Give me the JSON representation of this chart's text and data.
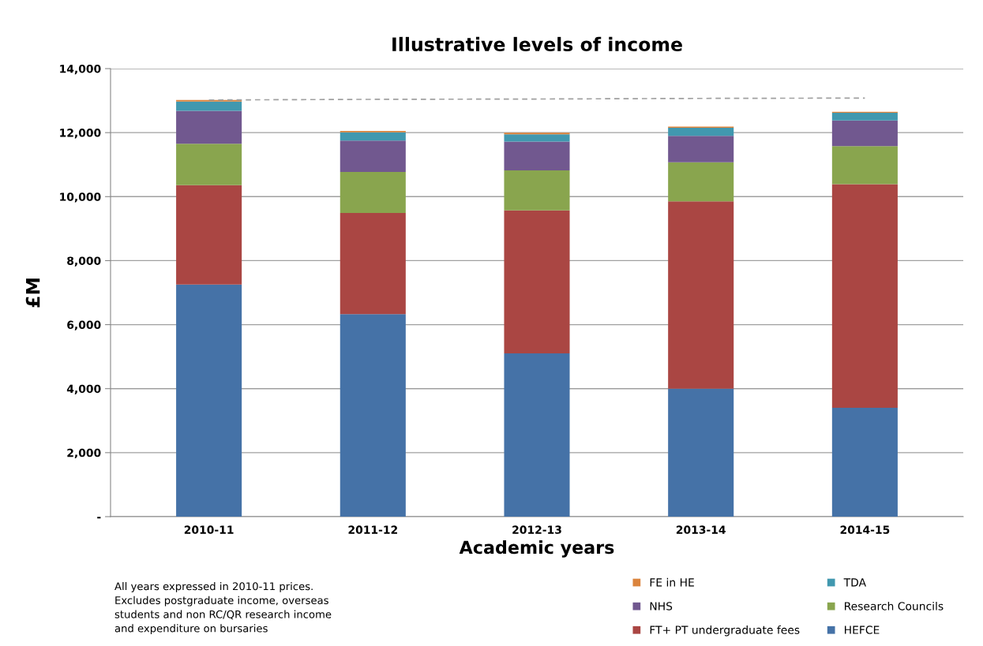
{
  "chart_data": {
    "type": "bar",
    "title": "Illustrative levels of income",
    "xlabel": "Academic years",
    "ylabel": "£M",
    "categories": [
      "2010-11",
      "2011-12",
      "2012-13",
      "2013-14",
      "2014-15"
    ],
    "stacked": true,
    "series": [
      {
        "name": "HEFCE",
        "color": "#4572a7",
        "values": [
          7250,
          6330,
          5100,
          4000,
          3400
        ]
      },
      {
        "name": "FT+ PT undergraduate fees",
        "color": "#aa4643",
        "values": [
          3110,
          3160,
          4470,
          5850,
          6990
        ]
      },
      {
        "name": "Research Councils",
        "color": "#89a54e",
        "values": [
          1290,
          1280,
          1250,
          1220,
          1190
        ]
      },
      {
        "name": "NHS",
        "color": "#71588f",
        "values": [
          1030,
          980,
          900,
          830,
          800
        ]
      },
      {
        "name": "TDA",
        "color": "#4198af",
        "values": [
          290,
          260,
          230,
          250,
          240
        ]
      },
      {
        "name": "FE in HE",
        "color": "#db843d",
        "values": [
          50,
          40,
          50,
          40,
          30
        ]
      },
      {
        "type": "line",
        "color": "#a0a0a0",
        "line_style": "dashed",
        "marker": "none",
        "values": [
          13020,
          13040,
          13050,
          13070,
          13080
        ]
      }
    ],
    "ylim": [
      0,
      14000
    ],
    "yticks": [
      {
        "value": 0,
        "label": "-"
      },
      {
        "value": 2000,
        "label": "2,000"
      },
      {
        "value": 4000,
        "label": "4,000"
      },
      {
        "value": 6000,
        "label": "6,000"
      },
      {
        "value": 8000,
        "label": "8,000"
      },
      {
        "value": 10000,
        "label": "10,000"
      },
      {
        "value": 12000,
        "label": "12,000"
      },
      {
        "value": 14000,
        "label": "14,000"
      }
    ],
    "grid": "y",
    "legend": "bottom right",
    "annotations": [
      "All years expressed in 2010-11 prices.\nExcludes postgraduate income, overseas\nstudents and non RC/QR research income\nand expenditure on bursaries"
    ]
  }
}
